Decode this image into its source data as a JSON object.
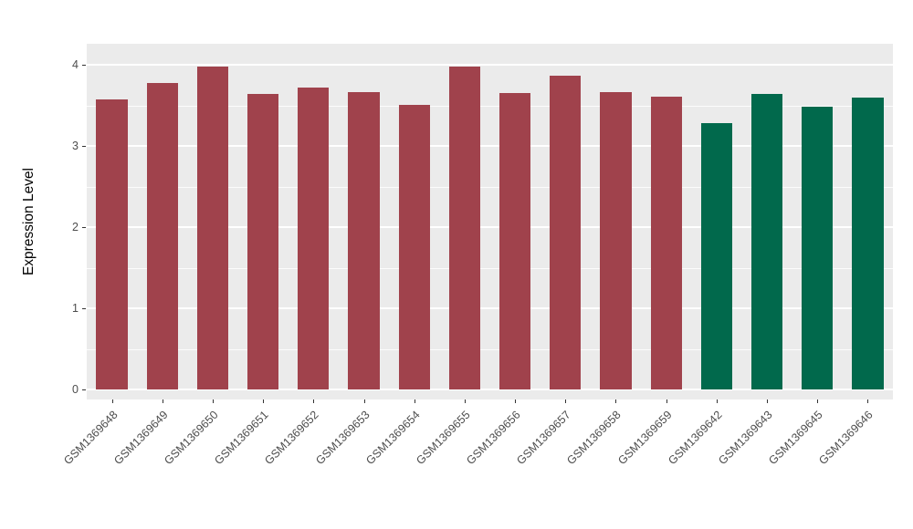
{
  "chart_data": {
    "type": "bar",
    "title": "",
    "xlabel": "",
    "ylabel": "Expression Level",
    "ylim": [
      0,
      4.26
    ],
    "yticks": [
      0,
      1,
      2,
      3,
      4
    ],
    "yticks_minor": [
      0.5,
      1.5,
      2.5,
      3.5
    ],
    "grid": true,
    "legend_position": "none",
    "categories": [
      "GSM1369648",
      "GSM1369649",
      "GSM1369650",
      "GSM1369651",
      "GSM1369652",
      "GSM1369653",
      "GSM1369654",
      "GSM1369655",
      "GSM1369656",
      "GSM1369657",
      "GSM1369658",
      "GSM1369659",
      "GSM1369642",
      "GSM1369643",
      "GSM1369645",
      "GSM1369646"
    ],
    "values": [
      3.57,
      3.78,
      3.98,
      3.64,
      3.72,
      3.66,
      3.51,
      3.98,
      3.65,
      3.87,
      3.66,
      3.61,
      3.28,
      3.64,
      3.48,
      3.59
    ],
    "bar_groups": [
      0,
      0,
      0,
      0,
      0,
      0,
      0,
      0,
      0,
      0,
      0,
      0,
      1,
      1,
      1,
      1
    ],
    "group_colors": [
      "#A0424C",
      "#01694C"
    ],
    "colors": {
      "panel_background": "#EBEBEB",
      "grid": "#FFFFFF",
      "axis_text": "#4D4D4D",
      "axis_title": "#000000",
      "tick_mark": "#333333"
    }
  }
}
